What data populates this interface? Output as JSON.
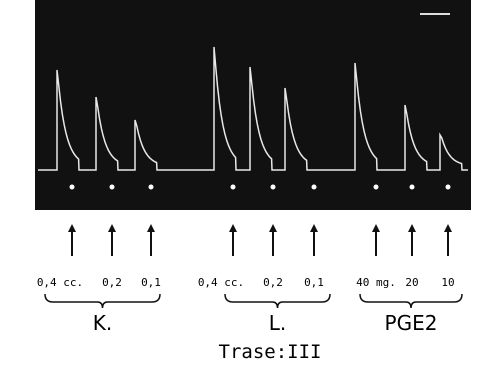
{
  "doses": [
    "0,4 cc.",
    "0,2",
    "0,1",
    "0,4 cc.",
    "0,2",
    "0,1",
    "40 mg.",
    "20",
    "10"
  ],
  "groups": [
    "K.",
    "L.",
    "PGE2"
  ],
  "title": "Trase:III"
}
